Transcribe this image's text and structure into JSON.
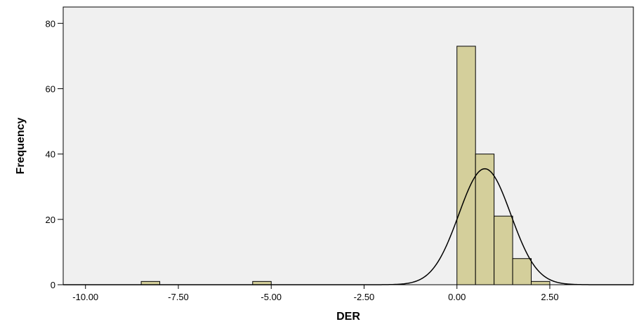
{
  "chart_data": {
    "type": "bar",
    "subtype": "histogram",
    "xlabel": "DER",
    "ylabel": "Frequency",
    "xlim": [
      -10.6,
      4.75
    ],
    "ylim": [
      0,
      85
    ],
    "x_ticks": [
      -10.0,
      -7.5,
      -5.0,
      -2.5,
      0.0,
      2.5
    ],
    "x_tick_labels": [
      "-10.00",
      "-7.50",
      "-5.00",
      "-2.50",
      "0.00",
      "2.50"
    ],
    "y_ticks": [
      0,
      20,
      40,
      60,
      80
    ],
    "y_tick_labels": [
      "0",
      "20",
      "40",
      "60",
      "80"
    ],
    "bins": [
      {
        "start": -8.5,
        "end": -8.0,
        "count": 1
      },
      {
        "start": -5.5,
        "end": -5.0,
        "count": 1
      },
      {
        "start": 0.0,
        "end": 0.5,
        "count": 73
      },
      {
        "start": 0.5,
        "end": 1.0,
        "count": 40
      },
      {
        "start": 1.0,
        "end": 1.5,
        "count": 21
      },
      {
        "start": 1.5,
        "end": 2.0,
        "count": 8
      },
      {
        "start": 2.0,
        "end": 2.5,
        "count": 1
      }
    ],
    "normal_curve": {
      "mean": 0.75,
      "peak_frequency": 35.5,
      "std_dev": 0.7
    },
    "grid": false,
    "legend": "none",
    "colors": {
      "plot_background": "#f0f0f0",
      "bar_fill": "#d4cf9b",
      "bar_stroke": "#000000",
      "curve": "#000000"
    }
  }
}
